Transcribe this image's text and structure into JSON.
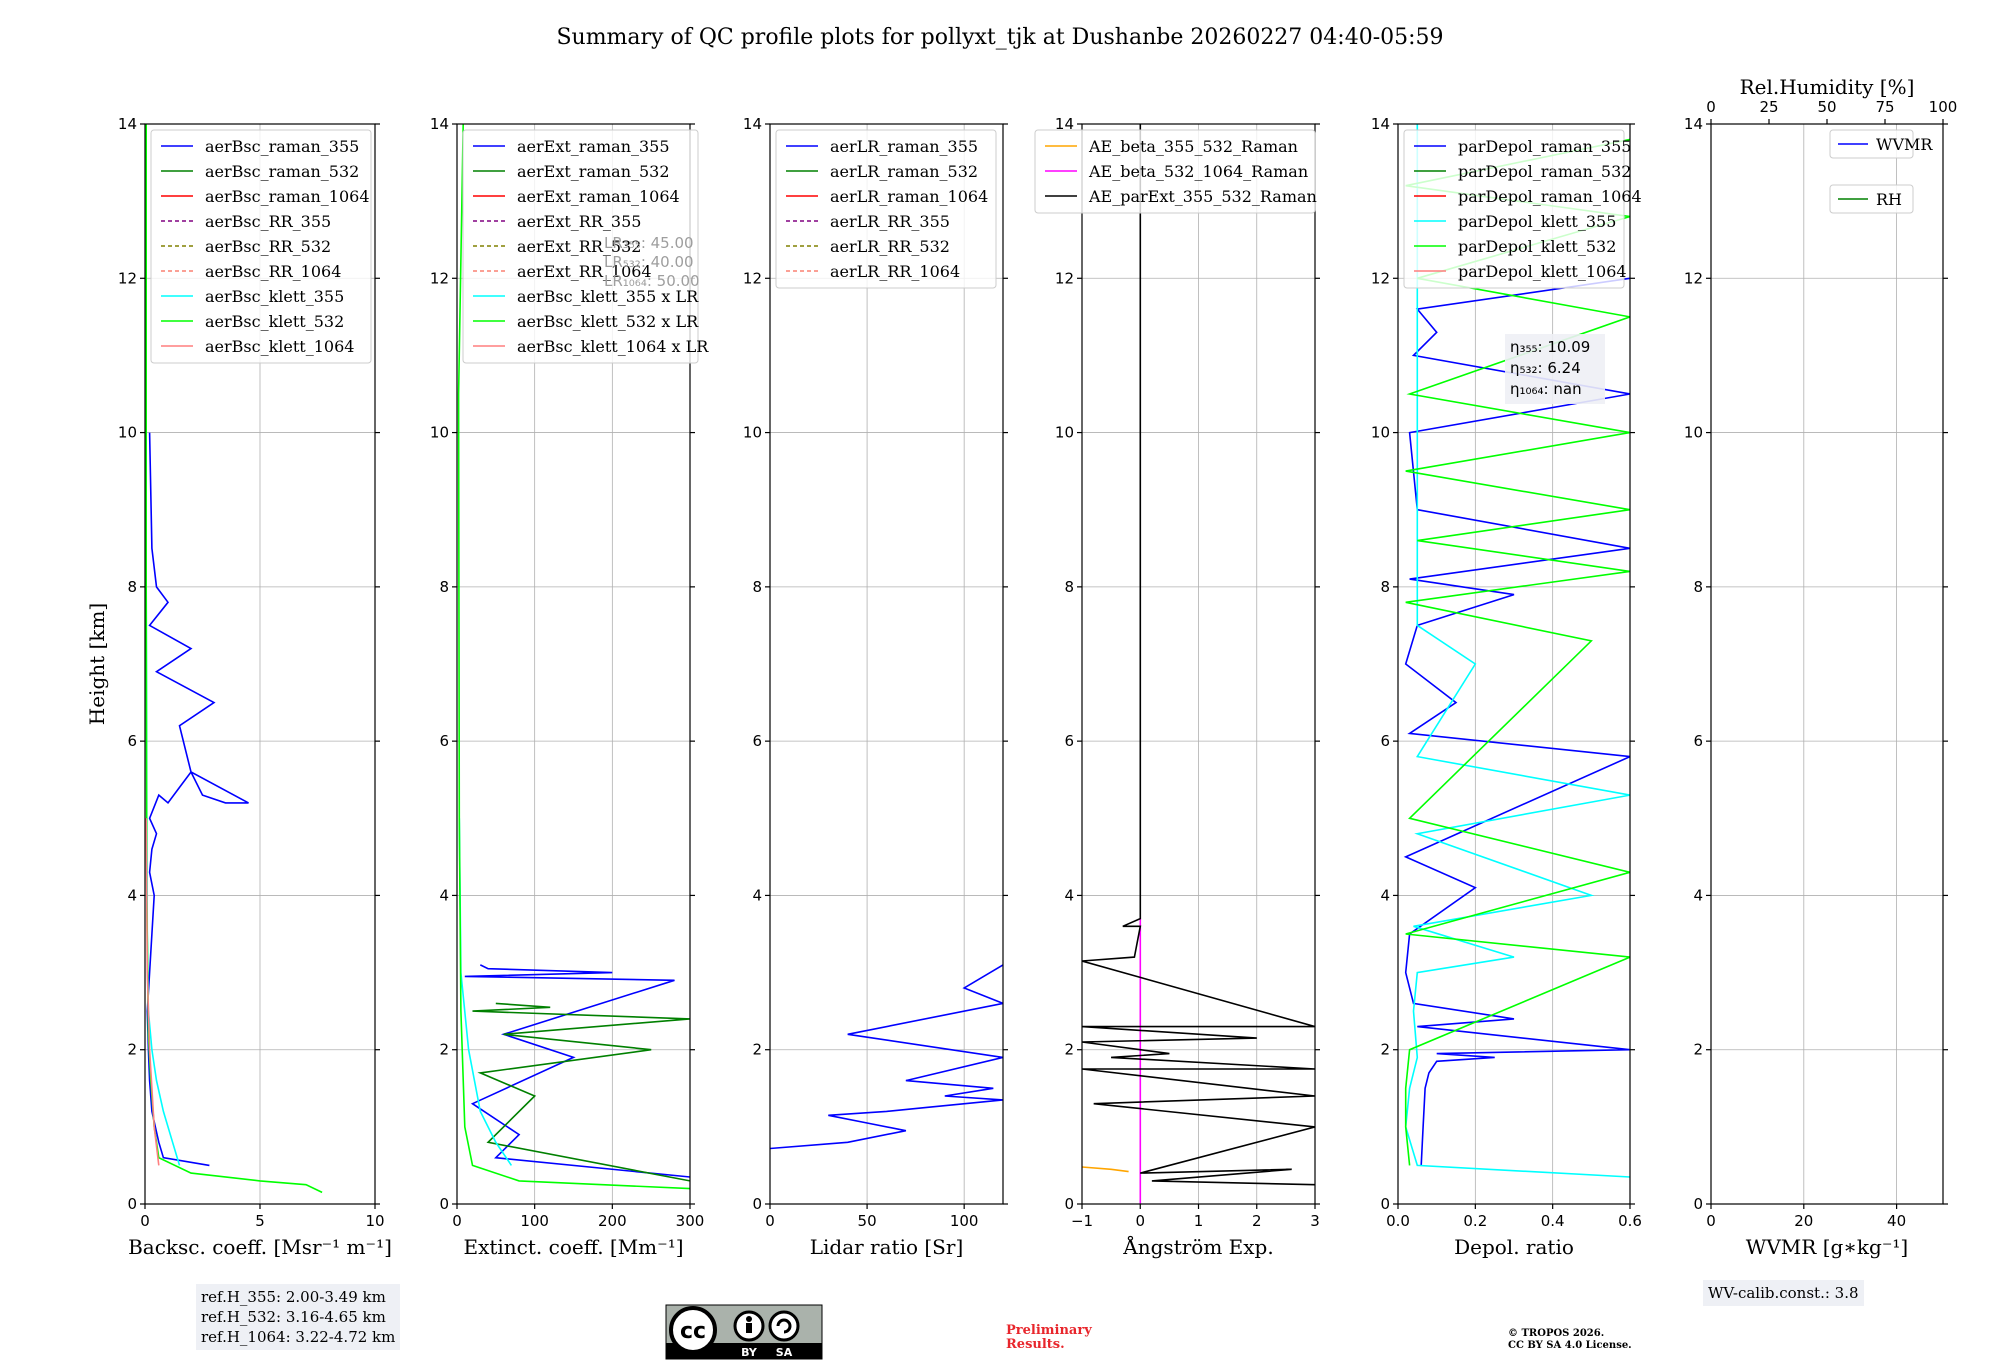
{
  "title": "Summary of QC profile plots for pollyxt_tjk at Dushanbe 20260227 04:40-05:59",
  "colors": {
    "raman355": "#0000ff",
    "raman532": "#008000",
    "raman1064": "#ff0000",
    "rr355": "#800080",
    "rr532": "#808000",
    "rr1064": "#fa8072",
    "klett355": "#00ffff",
    "klett532": "#00ff00",
    "klett1064": "#ff7f7f",
    "ae1": "#ffa500",
    "ae2": "#ff00ff",
    "ae3": "#000000"
  },
  "footer": {
    "ref_heights": [
      "ref.H_355: 2.00-3.49 km",
      "ref.H_532: 3.16-4.65 km",
      "ref.H_1064: 3.22-4.72 km"
    ],
    "cc_icon": "cc-by-sa-icon",
    "cc_text": [
      "BY",
      "SA"
    ],
    "preliminary": [
      "Preliminary",
      "Results."
    ],
    "copyright": [
      "© TROPOS 2026.",
      "CC BY SA 4.0 License."
    ],
    "wv_calib": "WV-calib.const.: 3.8"
  },
  "chart_data": [
    {
      "id": "bsc",
      "type": "line",
      "xlim": [
        0,
        10
      ],
      "ylim": [
        0,
        14
      ],
      "xticks": [
        "0",
        "5",
        "10"
      ],
      "xtick_vals": [
        0,
        5,
        10
      ],
      "yticks": [
        "0",
        "2",
        "4",
        "6",
        "8",
        "10",
        "12",
        "14"
      ],
      "xlabel": "Backsc. coeff. [Msr⁻¹ m⁻¹]",
      "ylabel": "Height [km]",
      "legend": [
        {
          "label": "aerBsc_raman_355",
          "color": "raman355",
          "dash": false
        },
        {
          "label": "aerBsc_raman_532",
          "color": "raman532",
          "dash": false
        },
        {
          "label": "aerBsc_raman_1064",
          "color": "raman1064",
          "dash": false
        },
        {
          "label": "aerBsc_RR_355",
          "color": "rr355",
          "dash": true
        },
        {
          "label": "aerBsc_RR_532",
          "color": "rr532",
          "dash": true
        },
        {
          "label": "aerBsc_RR_1064",
          "color": "rr1064",
          "dash": true
        },
        {
          "label": "aerBsc_klett_355",
          "color": "klett355",
          "dash": false
        },
        {
          "label": "aerBsc_klett_532",
          "color": "klett532",
          "dash": false
        },
        {
          "label": "aerBsc_klett_1064",
          "color": "klett1064",
          "dash": false
        }
      ],
      "series": [
        {
          "name": "aerBsc_raman_355",
          "color": "raman355",
          "x": [
            2.8,
            0.8,
            0.6,
            0.3,
            0.2,
            0.15,
            0.1,
            0.2,
            0.3,
            0.4,
            0.2,
            0.3,
            0.5,
            0.2,
            0.6,
            1.0,
            1.5,
            2.0,
            2.5,
            3.5,
            4.5,
            2.0,
            1.5,
            3.0,
            0.5,
            2.0,
            0.2,
            1.0,
            0.5,
            0.3,
            0.2
          ],
          "y": [
            0.5,
            0.6,
            0.8,
            1.2,
            1.6,
            2.0,
            2.5,
            3.0,
            3.5,
            4.0,
            4.3,
            4.6,
            4.8,
            5.0,
            5.3,
            5.2,
            5.4,
            5.6,
            5.3,
            5.2,
            5.2,
            5.6,
            6.2,
            6.5,
            6.9,
            7.2,
            7.5,
            7.8,
            8.0,
            8.5,
            10.0
          ]
        },
        {
          "name": "aerBsc_klett_355",
          "color": "klett355",
          "x": [
            1.5,
            1.2,
            0.8,
            0.5,
            0.3,
            0.15,
            0.1,
            0.08,
            0.05,
            0.05
          ],
          "y": [
            0.5,
            0.8,
            1.2,
            1.6,
            2.0,
            2.5,
            3.5,
            5.0,
            8.0,
            14.0
          ]
        },
        {
          "name": "aerBsc_klett_532",
          "color": "klett532",
          "x": [
            7.7,
            7.0,
            5.0,
            2.0,
            0.6,
            0.4,
            0.25,
            0.15,
            0.08,
            0.05,
            0.05
          ],
          "y": [
            0.15,
            0.25,
            0.3,
            0.4,
            0.6,
            1.0,
            1.6,
            2.2,
            4.0,
            8.0,
            14.0
          ]
        },
        {
          "name": "aerBsc_klett_1064",
          "color": "klett1064",
          "x": [
            0.6,
            0.4,
            0.3,
            0.2,
            0.1,
            0.05
          ],
          "y": [
            0.5,
            1.0,
            1.5,
            2.0,
            3.0,
            5.0
          ]
        }
      ]
    },
    {
      "id": "ext",
      "type": "line",
      "xlim": [
        0,
        300
      ],
      "ylim": [
        0,
        14
      ],
      "xticks": [
        "0",
        "100",
        "200",
        "300"
      ],
      "xtick_vals": [
        0,
        100,
        200,
        300
      ],
      "yticks": [
        "0",
        "2",
        "4",
        "6",
        "8",
        "10",
        "12",
        "14"
      ],
      "xlabel": "Extinct. coeff. [Mm⁻¹]",
      "legend": [
        {
          "label": "aerExt_raman_355",
          "color": "raman355",
          "dash": false
        },
        {
          "label": "aerExt_raman_532",
          "color": "raman532",
          "dash": false
        },
        {
          "label": "aerExt_raman_1064",
          "color": "raman1064",
          "dash": false
        },
        {
          "label": "aerExt_RR_355",
          "color": "rr355",
          "dash": true
        },
        {
          "label": "aerExt_RR_532",
          "color": "rr532",
          "dash": true
        },
        {
          "label": "aerExt_RR_1064",
          "color": "rr1064",
          "dash": true
        },
        {
          "label": "aerBsc_klett_355 x LR",
          "color": "klett355",
          "dash": false
        },
        {
          "label": "aerBsc_klett_532 x LR",
          "color": "klett532",
          "dash": false
        },
        {
          "label": "aerBsc_klett_1064 x LR",
          "color": "klett1064",
          "dash": false
        }
      ],
      "lr_note": [
        "LR₃₅₅: 45.00",
        "LR₅₃₂: 40.00",
        "LR₁₀₆₄: 50.00"
      ],
      "series": [
        {
          "name": "aerExt_raman_355",
          "color": "raman355",
          "x": [
            300,
            50,
            80,
            20,
            150,
            60,
            280,
            10,
            200,
            40,
            30
          ],
          "y": [
            0.35,
            0.6,
            0.9,
            1.3,
            1.9,
            2.2,
            2.9,
            2.95,
            3.0,
            3.05,
            3.1
          ]
        },
        {
          "name": "aerExt_raman_532",
          "color": "raman532",
          "x": [
            300,
            40,
            70,
            100,
            30,
            250,
            60,
            300,
            20,
            120,
            50
          ],
          "y": [
            0.3,
            0.8,
            1.1,
            1.4,
            1.7,
            2.0,
            2.2,
            2.4,
            2.5,
            2.55,
            2.6
          ]
        },
        {
          "name": "aerBsc_klett_355 x LR",
          "color": "klett355",
          "x": [
            70,
            50,
            30,
            15,
            5,
            3
          ],
          "y": [
            0.5,
            0.8,
            1.2,
            2.0,
            3.0,
            5.0
          ]
        },
        {
          "name": "aerBsc_klett_532 x LR",
          "color": "klett532",
          "x": [
            300,
            80,
            20,
            10,
            5,
            3,
            2,
            8
          ],
          "y": [
            0.2,
            0.3,
            0.5,
            1.0,
            2.5,
            5.0,
            10.5,
            14.0
          ]
        }
      ]
    },
    {
      "id": "lr",
      "type": "line",
      "xlim": [
        0,
        120
      ],
      "ylim": [
        0,
        14
      ],
      "xticks": [
        "0",
        "50",
        "100"
      ],
      "xtick_vals": [
        0,
        50,
        100
      ],
      "yticks": [
        "0",
        "2",
        "4",
        "6",
        "8",
        "10",
        "12",
        "14"
      ],
      "xlabel": "Lidar ratio [Sr]",
      "legend": [
        {
          "label": "aerLR_raman_355",
          "color": "raman355",
          "dash": false
        },
        {
          "label": "aerLR_raman_532",
          "color": "raman532",
          "dash": false
        },
        {
          "label": "aerLR_raman_1064",
          "color": "raman1064",
          "dash": false
        },
        {
          "label": "aerLR_RR_355",
          "color": "rr355",
          "dash": true
        },
        {
          "label": "aerLR_RR_532",
          "color": "rr532",
          "dash": true
        },
        {
          "label": "aerLR_RR_1064",
          "color": "rr1064",
          "dash": true
        }
      ],
      "series": [
        {
          "name": "aerLR_raman_355",
          "color": "raman355",
          "x": [
            0,
            40,
            70,
            50,
            30,
            60,
            80,
            120,
            90,
            115,
            70,
            120,
            40,
            120,
            100,
            120
          ],
          "y": [
            0.72,
            0.8,
            0.95,
            1.05,
            1.15,
            1.2,
            1.25,
            1.35,
            1.4,
            1.5,
            1.6,
            1.9,
            2.2,
            2.6,
            2.8,
            3.1
          ]
        }
      ]
    },
    {
      "id": "ae",
      "type": "line",
      "xlim": [
        -1,
        3
      ],
      "ylim": [
        0,
        14
      ],
      "xticks": [
        "−1",
        "0",
        "1",
        "2",
        "3"
      ],
      "xtick_vals": [
        -1,
        0,
        1,
        2,
        3
      ],
      "yticks": [
        "0",
        "2",
        "4",
        "6",
        "8",
        "10",
        "12",
        "14"
      ],
      "xlabel": "Ångström Exp.",
      "legend": [
        {
          "label": "AE_beta_355_532_Raman",
          "color": "ae1",
          "dash": false
        },
        {
          "label": "AE_beta_532_1064_Raman",
          "color": "ae2",
          "dash": false
        },
        {
          "label": "AE_parExt_355_532_Raman",
          "color": "ae3",
          "dash": false
        }
      ],
      "series": [
        {
          "name": "AE_beta_355_532_Raman",
          "color": "ae1",
          "x": [
            -1.0,
            -0.5,
            -0.2
          ],
          "y": [
            0.48,
            0.45,
            0.42
          ]
        },
        {
          "name": "AE_beta_532_1064_Raman",
          "color": "ae2",
          "x": [
            0,
            0,
            0
          ],
          "y": [
            0,
            2,
            3.7
          ]
        },
        {
          "name": "AE_parExt_355_532_Raman",
          "color": "ae3",
          "x": [
            3,
            0.2,
            2.6,
            0,
            3,
            -0.8,
            3,
            -1,
            3,
            -0.5,
            0.5,
            -1,
            2,
            -1,
            3,
            -1,
            -0.1,
            0,
            -0.3,
            0,
            0
          ],
          "y": [
            0.25,
            0.3,
            0.45,
            0.4,
            1.0,
            1.3,
            1.4,
            1.75,
            1.75,
            1.9,
            1.95,
            2.1,
            2.15,
            2.3,
            2.3,
            3.15,
            3.2,
            3.6,
            3.6,
            3.7,
            14
          ]
        }
      ]
    },
    {
      "id": "depol",
      "type": "line",
      "xlim": [
        0,
        0.6
      ],
      "ylim": [
        0,
        14
      ],
      "xticks": [
        "0.0",
        "0.2",
        "0.4",
        "0.6"
      ],
      "xtick_vals": [
        0,
        0.2,
        0.4,
        0.6
      ],
      "yticks": [
        "0",
        "2",
        "4",
        "6",
        "8",
        "10",
        "12",
        "14"
      ],
      "xlabel": "Depol. ratio",
      "legend": [
        {
          "label": "parDepol_raman_355",
          "color": "raman355",
          "dash": false
        },
        {
          "label": "parDepol_raman_532",
          "color": "raman532",
          "dash": false
        },
        {
          "label": "parDepol_raman_1064",
          "color": "raman1064",
          "dash": false
        },
        {
          "label": "parDepol_klett_355",
          "color": "klett355",
          "dash": false
        },
        {
          "label": "parDepol_klett_532",
          "color": "klett532",
          "dash": false
        },
        {
          "label": "parDepol_klett_1064",
          "color": "klett1064",
          "dash": false
        }
      ],
      "eta": [
        "η₃₅₅: 10.09",
        "η₅₃₂: 6.24",
        "η₁₀₆₄: nan"
      ],
      "series": [
        {
          "name": "parDepol_raman_355",
          "color": "raman355",
          "x": [
            0.06,
            0.065,
            0.07,
            0.08,
            0.1,
            0.25,
            0.1,
            0.6,
            0.05,
            0.3,
            0.04,
            0.02,
            0.03,
            0.2,
            0.02,
            0.6,
            0.03,
            0.15,
            0.02,
            0.05,
            0.3,
            0.03,
            0.6,
            0.05,
            0.03,
            0.6,
            0.04,
            0.1,
            0.05,
            0.6
          ],
          "y": [
            0.5,
            1.0,
            1.5,
            1.7,
            1.85,
            1.9,
            1.95,
            2.0,
            2.3,
            2.4,
            2.6,
            3.0,
            3.5,
            4.1,
            4.5,
            5.8,
            6.1,
            6.5,
            7.0,
            7.5,
            7.9,
            8.1,
            8.5,
            9.0,
            10.0,
            10.5,
            11.0,
            11.3,
            11.6,
            12.0
          ]
        },
        {
          "name": "parDepol_klett_355",
          "color": "klett355",
          "x": [
            0.6,
            0.05,
            0.02,
            0.03,
            0.05,
            0.04,
            0.05,
            0.3,
            0.04,
            0.5,
            0.05,
            0.6,
            0.05,
            0.2,
            0.05,
            0.05
          ],
          "y": [
            0.35,
            0.5,
            1.0,
            1.5,
            1.9,
            2.5,
            3.0,
            3.2,
            3.6,
            4.0,
            4.8,
            5.3,
            5.8,
            7.0,
            7.5,
            14.0
          ]
        },
        {
          "name": "parDepol_klett_532",
          "color": "klett532",
          "x": [
            0.03,
            0.02,
            0.02,
            0.03,
            0.6,
            0.02,
            0.6,
            0.03,
            0.5,
            0.02,
            0.6,
            0.05,
            0.6,
            0.02,
            0.6,
            0.03,
            0.6,
            0.05,
            0.6,
            0.02,
            0.6
          ],
          "y": [
            0.5,
            1.0,
            1.5,
            2.0,
            3.2,
            3.5,
            4.3,
            5.0,
            7.3,
            7.8,
            8.2,
            8.6,
            9.0,
            9.5,
            10.0,
            10.5,
            11.5,
            12.0,
            12.8,
            13.2,
            13.8
          ]
        }
      ]
    },
    {
      "id": "wv",
      "type": "line",
      "xlim": [
        0,
        50
      ],
      "ylim": [
        0,
        14
      ],
      "xticks": [
        "0",
        "20",
        "40"
      ],
      "xtick_vals": [
        0,
        20,
        40
      ],
      "yticks": [
        "0",
        "2",
        "4",
        "6",
        "8",
        "10",
        "12",
        "14"
      ],
      "xlabel": "WVMR [g∗kg⁻¹]",
      "top_xlim": [
        0,
        100
      ],
      "top_xticks": [
        "0",
        "25",
        "50",
        "75",
        "100"
      ],
      "top_xtick_vals": [
        0,
        25,
        50,
        75,
        100
      ],
      "top_xlabel": "Rel.Humidity [%]",
      "legend": [
        {
          "label": "WVMR",
          "color": "raman355",
          "dash": false
        },
        {
          "label": "RH",
          "color": "raman532",
          "dash": false
        }
      ],
      "series": []
    }
  ]
}
